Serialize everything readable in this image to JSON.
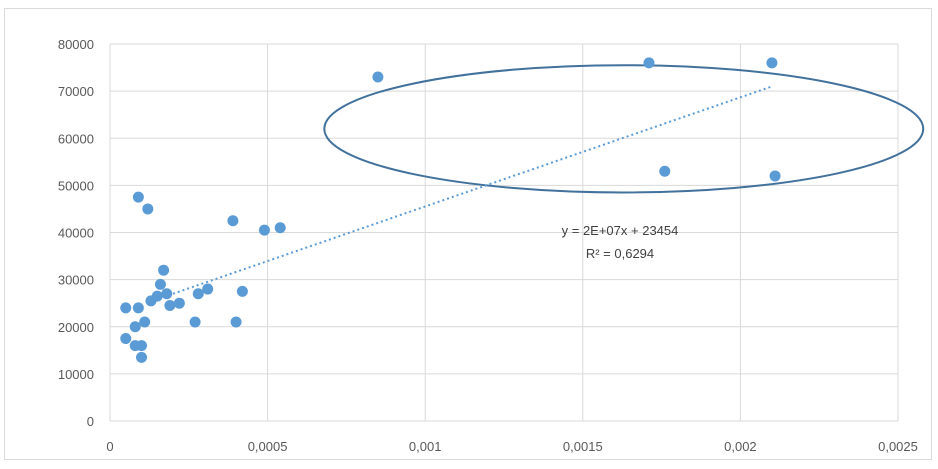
{
  "chart_data": {
    "type": "scatter",
    "title": "",
    "xlabel": "",
    "ylabel": "",
    "xlim": [
      0,
      0.0025
    ],
    "ylim": [
      0,
      80000
    ],
    "x_ticks": [
      0,
      0.0005,
      0.001,
      0.0015,
      0.002,
      0.0025
    ],
    "x_tick_labels": [
      "0",
      "0,0005",
      "0,001",
      "0,0015",
      "0,002",
      "0,0025"
    ],
    "y_ticks": [
      0,
      10000,
      20000,
      30000,
      40000,
      50000,
      60000,
      70000,
      80000
    ],
    "y_tick_labels": [
      "0",
      "10000",
      "20000",
      "30000",
      "40000",
      "50000",
      "60000",
      "70000",
      "80000"
    ],
    "grid": "vertical and horizontal major gridlines",
    "marker_color": "#5b9bd5",
    "series": [
      {
        "points": [
          {
            "x": 5e-05,
            "y": 17500
          },
          {
            "x": 5e-05,
            "y": 24000
          },
          {
            "x": 8e-05,
            "y": 16000
          },
          {
            "x": 8e-05,
            "y": 20000
          },
          {
            "x": 9e-05,
            "y": 47500
          },
          {
            "x": 9e-05,
            "y": 24000
          },
          {
            "x": 0.0001,
            "y": 16000
          },
          {
            "x": 0.0001,
            "y": 13500
          },
          {
            "x": 0.00011,
            "y": 21000
          },
          {
            "x": 0.00012,
            "y": 45000
          },
          {
            "x": 0.00013,
            "y": 25500
          },
          {
            "x": 0.00015,
            "y": 26500
          },
          {
            "x": 0.00016,
            "y": 29000
          },
          {
            "x": 0.00017,
            "y": 32000
          },
          {
            "x": 0.00018,
            "y": 27000
          },
          {
            "x": 0.00019,
            "y": 24500
          },
          {
            "x": 0.00022,
            "y": 25000
          },
          {
            "x": 0.00027,
            "y": 21000
          },
          {
            "x": 0.00028,
            "y": 27000
          },
          {
            "x": 0.00031,
            "y": 28000
          },
          {
            "x": 0.00039,
            "y": 42500
          },
          {
            "x": 0.0004,
            "y": 21000
          },
          {
            "x": 0.00042,
            "y": 27500
          },
          {
            "x": 0.00049,
            "y": 40500
          },
          {
            "x": 0.00054,
            "y": 41000
          },
          {
            "x": 0.00085,
            "y": 73000
          },
          {
            "x": 0.00171,
            "y": 76000
          },
          {
            "x": 0.00176,
            "y": 53000
          },
          {
            "x": 0.0021,
            "y": 76000
          },
          {
            "x": 0.00211,
            "y": 52000
          }
        ]
      }
    ],
    "trendline": {
      "type": "linear",
      "x_range": [
        0.0002,
        0.0021
      ],
      "y_range": [
        27000,
        71000
      ],
      "color": "#5b9bd5",
      "style": "dotted",
      "equation": "y = 2E+07x + 23454",
      "r_squared": "R² = 0,6294"
    },
    "annotation_ellipse": {
      "center": {
        "x": 0.00163,
        "y": 62000
      },
      "radius_x": 0.00095,
      "radius_y": 13500,
      "color": "#41719c"
    }
  }
}
